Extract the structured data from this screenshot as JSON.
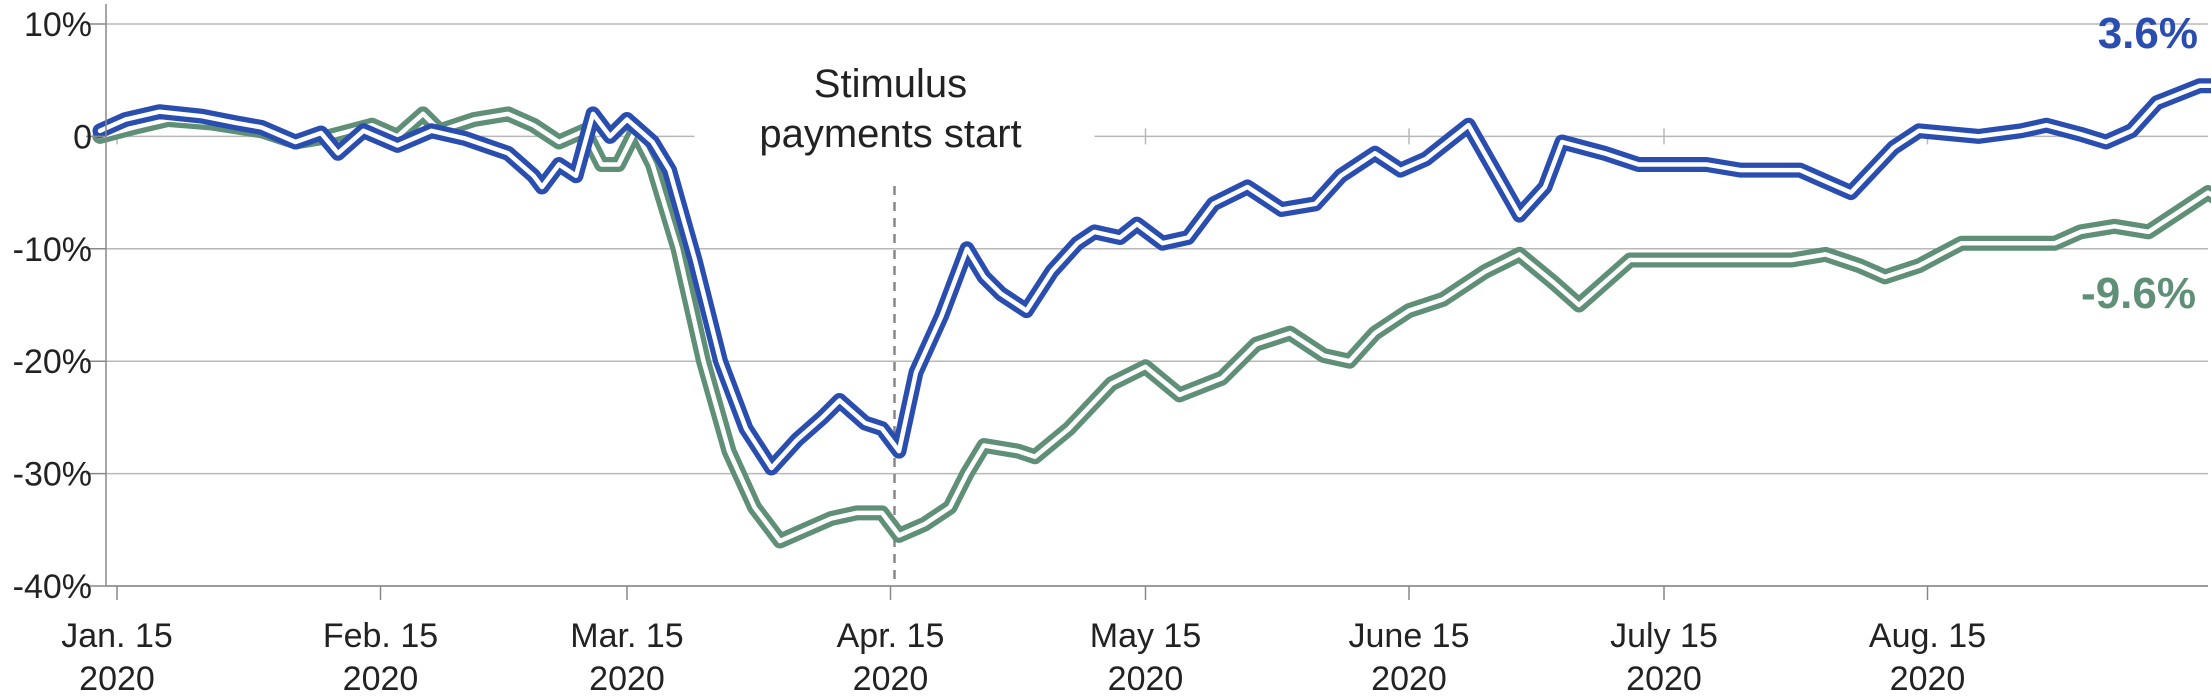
{
  "chart_data": {
    "type": "line",
    "title": "",
    "xlabel": "",
    "ylabel": "",
    "ylim": [
      -40,
      10
    ],
    "grid": "horizontal",
    "y_ticks": [
      {
        "value": 10,
        "label": "10%"
      },
      {
        "value": 0,
        "label": "0"
      },
      {
        "value": -10,
        "label": "-10%"
      },
      {
        "value": -20,
        "label": "-20%"
      },
      {
        "value": -30,
        "label": "-30%"
      },
      {
        "value": -40,
        "label": "-40%"
      }
    ],
    "x_ticks": [
      {
        "date": "2020-01-15",
        "line1": "Jan. 15",
        "line2": "2020"
      },
      {
        "date": "2020-02-15",
        "line1": "Feb. 15",
        "line2": "2020"
      },
      {
        "date": "2020-03-15",
        "line1": "Mar. 15",
        "line2": "2020"
      },
      {
        "date": "2020-04-15",
        "line1": "Apr. 15",
        "line2": "2020"
      },
      {
        "date": "2020-05-15",
        "line1": "May 15",
        "line2": "2020"
      },
      {
        "date": "2020-06-15",
        "line1": "June 15",
        "line2": "2020"
      },
      {
        "date": "2020-07-15",
        "line1": "July 15",
        "line2": "2020"
      },
      {
        "date": "2020-08-15",
        "line1": "Aug. 15",
        "line2": "2020"
      }
    ],
    "annotations": [
      {
        "date": "2020-04-15",
        "line1": "Stimulus",
        "line2": "payments start"
      }
    ],
    "series": [
      {
        "color": "#2a4db0",
        "end_label": "3.6%",
        "points": [
          [
            "2020-01-13",
            0.5
          ],
          [
            "2020-01-16",
            1.5
          ],
          [
            "2020-01-20",
            2.2
          ],
          [
            "2020-01-25",
            1.8
          ],
          [
            "2020-01-29",
            1.2
          ],
          [
            "2020-02-01",
            0.8
          ],
          [
            "2020-02-05",
            -0.5
          ],
          [
            "2020-02-08",
            0.3
          ],
          [
            "2020-02-10",
            -1.5
          ],
          [
            "2020-02-13",
            0.5
          ],
          [
            "2020-02-17",
            -0.8
          ],
          [
            "2020-02-21",
            0.5
          ],
          [
            "2020-02-25",
            -0.2
          ],
          [
            "2020-03-01",
            -1.5
          ],
          [
            "2020-03-04",
            -3.5
          ],
          [
            "2020-03-05",
            -4.5
          ],
          [
            "2020-03-07",
            -2.5
          ],
          [
            "2020-03-09",
            -3.5
          ],
          [
            "2020-03-11",
            2.0
          ],
          [
            "2020-03-13",
            0.0
          ],
          [
            "2020-03-15",
            1.5
          ],
          [
            "2020-03-18",
            -0.5
          ],
          [
            "2020-03-20",
            -3.0
          ],
          [
            "2020-03-23",
            -11.0
          ],
          [
            "2020-03-26",
            -20.0
          ],
          [
            "2020-03-29",
            -26.0
          ],
          [
            "2020-04-01",
            -29.5
          ],
          [
            "2020-04-04",
            -27.0
          ],
          [
            "2020-04-07",
            -25.0
          ],
          [
            "2020-04-09",
            -23.5
          ],
          [
            "2020-04-12",
            -25.5
          ],
          [
            "2020-04-14",
            -26.0
          ],
          [
            "2020-04-16",
            -28.0
          ],
          [
            "2020-04-18",
            -21.0
          ],
          [
            "2020-04-21",
            -16.0
          ],
          [
            "2020-04-24",
            -10.0
          ],
          [
            "2020-04-26",
            -12.5
          ],
          [
            "2020-04-28",
            -14.0
          ],
          [
            "2020-05-01",
            -15.5
          ],
          [
            "2020-05-04",
            -12.0
          ],
          [
            "2020-05-07",
            -9.5
          ],
          [
            "2020-05-09",
            -8.5
          ],
          [
            "2020-05-12",
            -9.0
          ],
          [
            "2020-05-14",
            -7.8
          ],
          [
            "2020-05-17",
            -9.5
          ],
          [
            "2020-05-20",
            -9.0
          ],
          [
            "2020-05-23",
            -6.0
          ],
          [
            "2020-05-27",
            -4.5
          ],
          [
            "2020-05-31",
            -6.5
          ],
          [
            "2020-06-04",
            -6.0
          ],
          [
            "2020-06-07",
            -3.5
          ],
          [
            "2020-06-11",
            -1.5
          ],
          [
            "2020-06-14",
            -3.0
          ],
          [
            "2020-06-17",
            -2.0
          ],
          [
            "2020-06-22",
            1.0
          ],
          [
            "2020-06-25",
            -3.0
          ],
          [
            "2020-06-28",
            -7.0
          ],
          [
            "2020-07-01",
            -4.5
          ],
          [
            "2020-07-03",
            -0.5
          ],
          [
            "2020-07-08",
            -1.5
          ],
          [
            "2020-07-12",
            -2.5
          ],
          [
            "2020-07-20",
            -2.5
          ],
          [
            "2020-07-24",
            -3.0
          ],
          [
            "2020-07-31",
            -3.0
          ],
          [
            "2020-08-03",
            -4.0
          ],
          [
            "2020-08-06",
            -5.0
          ],
          [
            "2020-08-11",
            -1.0
          ],
          [
            "2020-08-14",
            0.5
          ],
          [
            "2020-08-21",
            0.0
          ],
          [
            "2020-08-26",
            0.5
          ],
          [
            "2020-08-29",
            1.0
          ],
          [
            "2020-09-02",
            0.2
          ],
          [
            "2020-09-05",
            -0.5
          ],
          [
            "2020-09-08",
            0.5
          ],
          [
            "2020-09-11",
            3.0
          ],
          [
            "2020-09-16",
            4.5
          ],
          [
            "2020-09-19",
            4.5
          ],
          [
            "2020-09-21",
            3.6
          ]
        ]
      },
      {
        "color": "#5f8f76",
        "end_label": "-9.6%",
        "points": [
          [
            "2020-01-13",
            0.0
          ],
          [
            "2020-01-17",
            0.8
          ],
          [
            "2020-01-21",
            1.5
          ],
          [
            "2020-01-26",
            1.2
          ],
          [
            "2020-02-01",
            0.5
          ],
          [
            "2020-02-05",
            -0.5
          ],
          [
            "2020-02-09",
            0.0
          ],
          [
            "2020-02-14",
            1.0
          ],
          [
            "2020-02-17",
            0.0
          ],
          [
            "2020-02-20",
            2.0
          ],
          [
            "2020-02-22",
            0.5
          ],
          [
            "2020-02-26",
            1.5
          ],
          [
            "2020-03-01",
            2.0
          ],
          [
            "2020-03-04",
            1.0
          ],
          [
            "2020-03-07",
            -0.5
          ],
          [
            "2020-03-10",
            0.5
          ],
          [
            "2020-03-12",
            -2.5
          ],
          [
            "2020-03-14",
            -2.5
          ],
          [
            "2020-03-16",
            0.5
          ],
          [
            "2020-03-18",
            -2.5
          ],
          [
            "2020-03-21",
            -10.0
          ],
          [
            "2020-03-24",
            -20.0
          ],
          [
            "2020-03-27",
            -28.0
          ],
          [
            "2020-03-30",
            -33.0
          ],
          [
            "2020-04-02",
            -36.0
          ],
          [
            "2020-04-05",
            -35.0
          ],
          [
            "2020-04-08",
            -34.0
          ],
          [
            "2020-04-11",
            -33.5
          ],
          [
            "2020-04-14",
            -33.5
          ],
          [
            "2020-04-16",
            -35.5
          ],
          [
            "2020-04-19",
            -34.5
          ],
          [
            "2020-04-22",
            -33.0
          ],
          [
            "2020-04-24",
            -30.0
          ],
          [
            "2020-04-26",
            -27.5
          ],
          [
            "2020-04-30",
            -28.0
          ],
          [
            "2020-05-02",
            -28.5
          ],
          [
            "2020-05-06",
            -26.0
          ],
          [
            "2020-05-11",
            -22.0
          ],
          [
            "2020-05-15",
            -20.5
          ],
          [
            "2020-05-19",
            -23.0
          ],
          [
            "2020-05-24",
            -21.5
          ],
          [
            "2020-05-28",
            -18.5
          ],
          [
            "2020-06-01",
            -17.5
          ],
          [
            "2020-06-05",
            -19.5
          ],
          [
            "2020-06-08",
            -20.0
          ],
          [
            "2020-06-11",
            -17.5
          ],
          [
            "2020-06-15",
            -15.5
          ],
          [
            "2020-06-19",
            -14.5
          ],
          [
            "2020-06-24",
            -12.0
          ],
          [
            "2020-06-28",
            -10.5
          ],
          [
            "2020-07-02",
            -13.0
          ],
          [
            "2020-07-05",
            -15.0
          ],
          [
            "2020-07-08",
            -13.0
          ],
          [
            "2020-07-11",
            -11.0
          ],
          [
            "2020-07-20",
            -11.0
          ],
          [
            "2020-07-30",
            -11.0
          ],
          [
            "2020-08-03",
            -10.5
          ],
          [
            "2020-08-07",
            -11.5
          ],
          [
            "2020-08-10",
            -12.5
          ],
          [
            "2020-08-14",
            -11.5
          ],
          [
            "2020-08-19",
            -9.5
          ],
          [
            "2020-08-25",
            -9.5
          ],
          [
            "2020-08-30",
            -9.5
          ],
          [
            "2020-09-02",
            -8.5
          ],
          [
            "2020-09-06",
            -8.0
          ],
          [
            "2020-09-10",
            -8.5
          ],
          [
            "2020-09-14",
            -6.5
          ],
          [
            "2020-09-17",
            -5.0
          ],
          [
            "2020-09-19",
            -6.0
          ],
          [
            "2020-09-22",
            -8.0
          ],
          [
            "2020-09-24",
            -9.6
          ]
        ]
      }
    ]
  }
}
